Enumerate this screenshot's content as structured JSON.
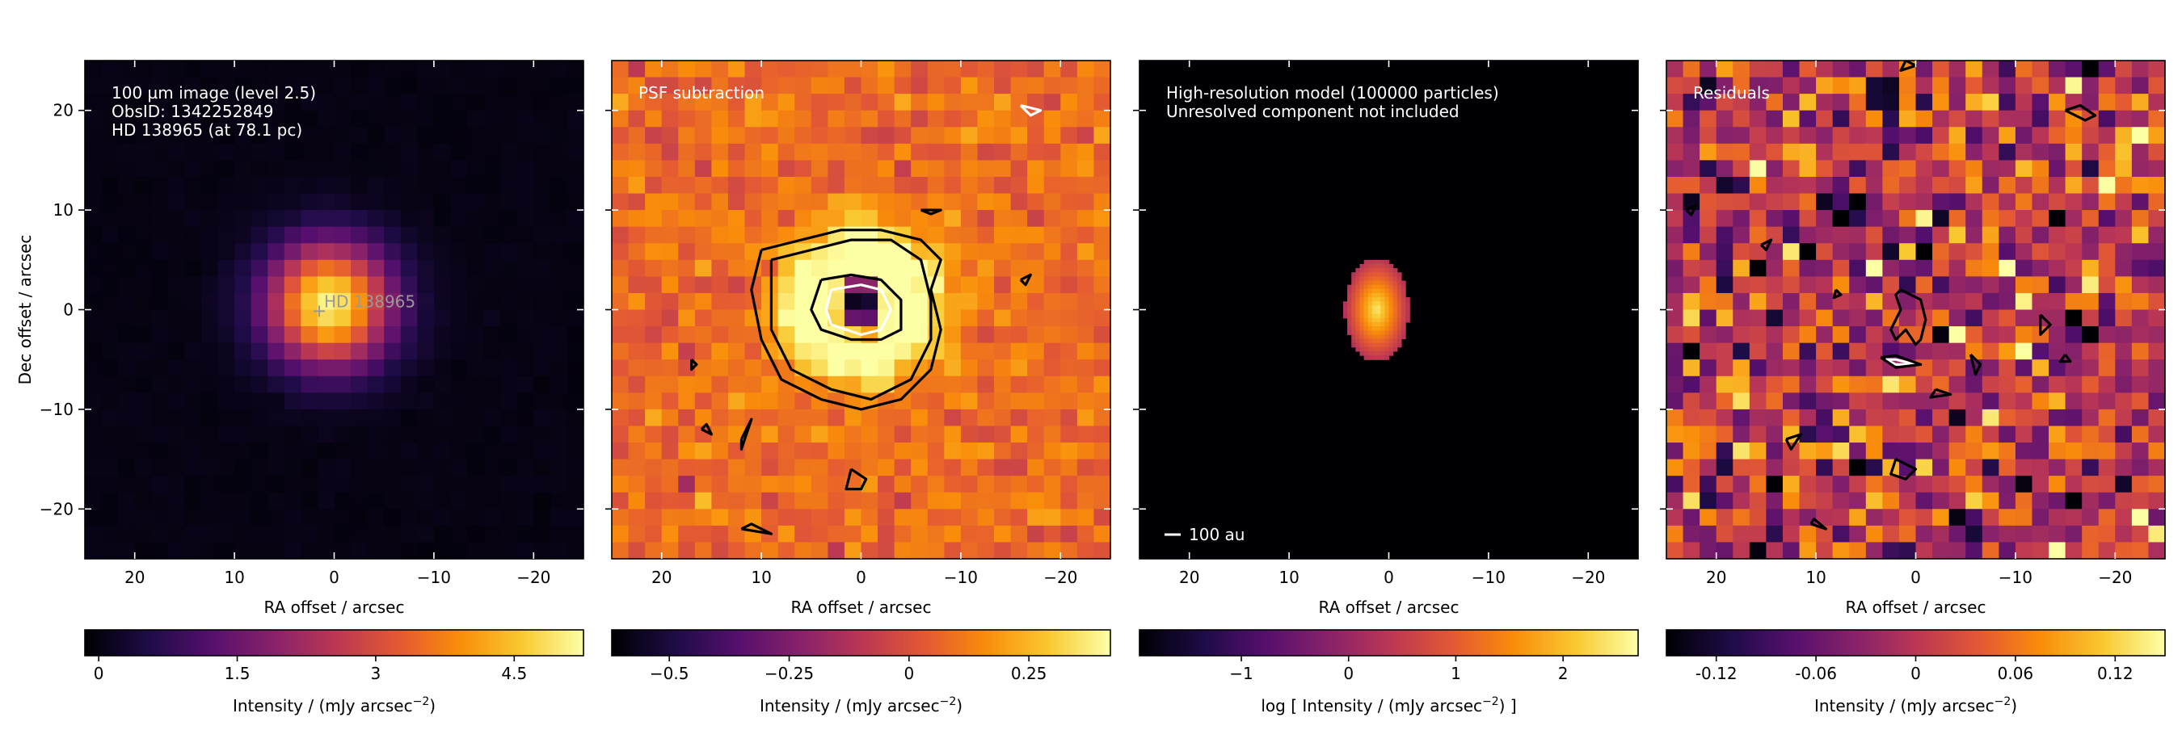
{
  "chart_data": [
    {
      "type": "heatmap",
      "title": "",
      "annotation": [
        "100 µm image (level 2.5)",
        "ObsID: 1342252849",
        "HD 138965 (at 78.1 pc)"
      ],
      "marker_label": "HD 138965",
      "marker_position": [
        1.5,
        0.5
      ],
      "xlabel": "RA offset / arcsec",
      "ylabel": "Dec offset / arcsec",
      "xlim": [
        25,
        -25
      ],
      "ylim": [
        -25,
        25
      ],
      "xticks": [
        20,
        10,
        0,
        -10,
        -20
      ],
      "xtick_labels": [
        "20",
        "10",
        "0",
        "−10",
        "−20"
      ],
      "yticks": [
        20,
        10,
        0,
        -10,
        -20
      ],
      "ytick_labels": [
        "20",
        "10",
        "0",
        "−10",
        "−20"
      ],
      "image_model": "gaussian",
      "peak": 5.1,
      "center": [
        0.5,
        0.5
      ],
      "sigma": 4.3,
      "colorbar": {
        "label": "Intensity / (mJy arcsec",
        "label_sup": "−2",
        "label_tail": ")",
        "range": [
          -0.15,
          5.25
        ],
        "ticks": [
          0,
          1.5,
          3,
          4.5
        ],
        "tick_labels": [
          "0",
          "1.5",
          "3",
          "4.5"
        ]
      },
      "contours": []
    },
    {
      "type": "heatmap",
      "title": "",
      "annotation": [
        "PSF subtraction"
      ],
      "xlabel": "RA offset / arcsec",
      "ylabel": "",
      "xlim": [
        25,
        -25
      ],
      "ylim": [
        -25,
        25
      ],
      "xticks": [
        20,
        10,
        0,
        -10,
        -20
      ],
      "xtick_labels": [
        "20",
        "10",
        "0",
        "−10",
        "−20"
      ],
      "yticks": [
        20,
        10,
        0,
        -10,
        -20
      ],
      "ytick_labels": [],
      "image_model": "ring",
      "ring_radius": 5.2,
      "ring_width": 2.6,
      "ring_peak": 0.42,
      "center": [
        0.0,
        0.5
      ],
      "hole_depth": -0.72,
      "background": 0.08,
      "noise": 0.06,
      "colorbar": {
        "label": "Intensity / (mJy arcsec",
        "label_sup": "−2",
        "label_tail": ")",
        "range": [
          -0.62,
          0.42
        ],
        "ticks": [
          -0.5,
          -0.25,
          0,
          0.25
        ],
        "tick_labels": [
          "−0.5",
          "−0.25",
          "0",
          "0.25"
        ]
      },
      "contours": [
        {
          "color": "#000000",
          "points": [
            [
              10,
              6
            ],
            [
              6,
              7
            ],
            [
              2,
              8
            ],
            [
              -2,
              8
            ],
            [
              -6,
              7
            ],
            [
              -8,
              5
            ],
            [
              -7,
              2
            ],
            [
              -8,
              -2
            ],
            [
              -7,
              -6
            ],
            [
              -4,
              -9
            ],
            [
              0,
              -10
            ],
            [
              4,
              -9
            ],
            [
              8,
              -7
            ],
            [
              10,
              -3
            ],
            [
              11,
              2
            ],
            [
              10,
              6
            ]
          ]
        },
        {
          "color": "#000000",
          "points": [
            [
              9,
              5
            ],
            [
              5,
              6
            ],
            [
              1,
              7
            ],
            [
              -3,
              7
            ],
            [
              -6,
              5
            ],
            [
              -7,
              1
            ],
            [
              -7,
              -3
            ],
            [
              -5,
              -7
            ],
            [
              -1,
              -9
            ],
            [
              3,
              -8
            ],
            [
              7,
              -6
            ],
            [
              9,
              -2
            ],
            [
              9,
              2
            ],
            [
              9,
              5
            ]
          ]
        },
        {
          "color": "#000000",
          "points": [
            [
              4,
              3
            ],
            [
              1,
              3.5
            ],
            [
              -2,
              3
            ],
            [
              -4,
              1
            ],
            [
              -4,
              -2
            ],
            [
              -2,
              -3
            ],
            [
              1,
              -3
            ],
            [
              4,
              -2
            ],
            [
              5,
              0
            ],
            [
              4,
              3
            ]
          ]
        },
        {
          "color": "#ffffff",
          "points": [
            [
              3,
              2
            ],
            [
              0,
              2.5
            ],
            [
              -2,
              2
            ],
            [
              -3,
              0
            ],
            [
              -2,
              -2
            ],
            [
              0,
              -2.5
            ],
            [
              3,
              -1.5
            ],
            [
              3.5,
              0
            ],
            [
              3,
              2
            ]
          ]
        },
        {
          "color": "#000000",
          "points": [
            [
              -6,
              10
            ],
            [
              -8,
              10
            ],
            [
              -7,
              9.6
            ],
            [
              -6,
              10
            ]
          ]
        },
        {
          "color": "#ffffff",
          "points": [
            [
              -16,
              20.5
            ],
            [
              -18,
              20
            ],
            [
              -17,
              19.5
            ],
            [
              -16,
              20.5
            ]
          ]
        },
        {
          "color": "#000000",
          "points": [
            [
              -16,
              3
            ],
            [
              -17,
              3.5
            ],
            [
              -16.5,
              2.5
            ],
            [
              -16,
              3
            ]
          ]
        },
        {
          "color": "#000000",
          "points": [
            [
              1,
              -16
            ],
            [
              -0.5,
              -17
            ],
            [
              0,
              -18
            ],
            [
              1.5,
              -18
            ],
            [
              1,
              -16
            ]
          ]
        },
        {
          "color": "#000000",
          "points": [
            [
              12,
              -22
            ],
            [
              9,
              -22.5
            ],
            [
              11,
              -21.5
            ],
            [
              12,
              -22
            ]
          ]
        },
        {
          "color": "#000000",
          "points": [
            [
              12,
              -13
            ],
            [
              11,
              -11
            ],
            [
              12,
              -14
            ],
            [
              12,
              -13
            ]
          ]
        },
        {
          "color": "#000000",
          "points": [
            [
              16,
              -12
            ],
            [
              15,
              -12.5
            ],
            [
              15.5,
              -11.5
            ],
            [
              16,
              -12
            ]
          ]
        },
        {
          "color": "#000000",
          "points": [
            [
              17,
              -5
            ],
            [
              16.5,
              -5.5
            ],
            [
              17,
              -6
            ],
            [
              17,
              -5
            ]
          ]
        }
      ]
    },
    {
      "type": "heatmap",
      "title": "",
      "annotation": [
        "High-resolution model (100000 particles)",
        "Unresolved component not included"
      ],
      "scalebar_label": "100 au",
      "scalebar_length": 1.3,
      "xlabel": "RA offset / arcsec",
      "ylabel": "",
      "xlim": [
        25,
        -25
      ],
      "ylim": [
        -25,
        25
      ],
      "xticks": [
        20,
        10,
        0,
        -10,
        -20
      ],
      "xtick_labels": [
        "20",
        "10",
        "0",
        "−10",
        "−20"
      ],
      "yticks": [
        20,
        10,
        0,
        -10,
        -20
      ],
      "ytick_labels": [],
      "image_model": "ellipse",
      "center": [
        1.2,
        0.0
      ],
      "semi_axes": [
        3.2,
        5.2
      ],
      "colorbar": {
        "label": "log [ Intensity / (mJy arcsec",
        "label_sup": "−2",
        "label_tail": ") ]",
        "range": [
          -1.95,
          2.7
        ],
        "ticks": [
          -1,
          0,
          1,
          2
        ],
        "tick_labels": [
          "−1",
          "0",
          "1",
          "2"
        ]
      },
      "contours": []
    },
    {
      "type": "heatmap",
      "title": "",
      "annotation": [
        "Residuals"
      ],
      "xlabel": "RA offset / arcsec",
      "ylabel": "",
      "xlim": [
        25,
        -25
      ],
      "ylim": [
        -25,
        25
      ],
      "xticks": [
        20,
        10,
        0,
        -10,
        -20
      ],
      "xtick_labels": [
        "20",
        "10",
        "0",
        "−10",
        "−20"
      ],
      "yticks": [
        20,
        10,
        0,
        -10,
        -20
      ],
      "ytick_labels": [],
      "image_model": "noise",
      "noise": 0.06,
      "colorbar": {
        "label": "Intensity / (mJy arcsec",
        "label_sup": "−2",
        "label_tail": ")",
        "range": [
          -0.15,
          0.15
        ],
        "ticks": [
          -0.12,
          -0.06,
          0,
          0.06,
          0.12
        ],
        "tick_labels": [
          "-0.12",
          "-0.06",
          "0",
          "0.06",
          "0.12"
        ]
      },
      "contours": [
        {
          "color": "#000000",
          "points": [
            [
              1.5,
              2
            ],
            [
              -0.5,
              1
            ],
            [
              -1,
              -1
            ],
            [
              -0.5,
              -3
            ],
            [
              0,
              -3.5
            ],
            [
              1,
              -2
            ],
            [
              2,
              -3
            ],
            [
              2.5,
              -2
            ],
            [
              1.5,
              0
            ],
            [
              2,
              1.5
            ],
            [
              1.5,
              2
            ]
          ]
        },
        {
          "color": "#ffffff",
          "points": [
            [
              3,
              -5
            ],
            [
              2,
              -5.5
            ],
            [
              0,
              -5.5
            ],
            [
              2,
              -5
            ],
            [
              3,
              -5
            ]
          ]
        },
        {
          "color": "#000000",
          "points": [
            [
              3.5,
              -4.8
            ],
            [
              2,
              -5.8
            ],
            [
              -0.5,
              -5.5
            ],
            [
              2,
              -4.6
            ],
            [
              3.5,
              -4.8
            ]
          ]
        },
        {
          "color": "#000000",
          "points": [
            [
              -15,
              20
            ],
            [
              -17,
              19
            ],
            [
              -18,
              19.5
            ],
            [
              -16.5,
              20.5
            ],
            [
              -15,
              20
            ]
          ]
        },
        {
          "color": "#000000",
          "points": [
            [
              -12.5,
              -0.5
            ],
            [
              -13.5,
              -1.5
            ],
            [
              -12.5,
              -2.5
            ],
            [
              -12.5,
              -0.5
            ]
          ]
        },
        {
          "color": "#000000",
          "points": [
            [
              -15,
              -4.5
            ],
            [
              -15.5,
              -5.2
            ],
            [
              -14.5,
              -5.2
            ],
            [
              -15,
              -4.5
            ]
          ]
        },
        {
          "color": "#000000",
          "points": [
            [
              -5.5,
              -4.5
            ],
            [
              -6.5,
              -5.5
            ],
            [
              -6,
              -6.5
            ],
            [
              -5.5,
              -4.5
            ]
          ]
        },
        {
          "color": "#000000",
          "points": [
            [
              -2,
              -8
            ],
            [
              -3.5,
              -8.5
            ],
            [
              -1.5,
              -8.8
            ],
            [
              -2,
              -8
            ]
          ]
        },
        {
          "color": "#000000",
          "points": [
            [
              2,
              -15
            ],
            [
              0,
              -16
            ],
            [
              1,
              -17
            ],
            [
              2.5,
              -16.5
            ],
            [
              2,
              -15
            ]
          ]
        },
        {
          "color": "#000000",
          "points": [
            [
              13,
              -13
            ],
            [
              11.5,
              -12.5
            ],
            [
              12.5,
              -14
            ],
            [
              13,
              -13
            ]
          ]
        },
        {
          "color": "#000000",
          "points": [
            [
              10.5,
              -21.5
            ],
            [
              9,
              -22
            ],
            [
              10.2,
              -21
            ],
            [
              10.5,
              -21.5
            ]
          ]
        },
        {
          "color": "#000000",
          "points": [
            [
              15.5,
              6.5
            ],
            [
              14.5,
              7
            ],
            [
              15,
              6
            ],
            [
              15.5,
              6.5
            ]
          ]
        },
        {
          "color": "#000000",
          "points": [
            [
              23,
              10
            ],
            [
              22,
              10.5
            ],
            [
              22.5,
              9.5
            ],
            [
              23,
              10
            ]
          ]
        },
        {
          "color": "#000000",
          "points": [
            [
              8,
              2
            ],
            [
              7.5,
              1.5
            ],
            [
              8.2,
              1.2
            ],
            [
              8,
              2
            ]
          ]
        },
        {
          "color": "#000000",
          "points": [
            [
              1,
              25
            ],
            [
              0,
              24.5
            ],
            [
              1.5,
              24
            ],
            [
              1,
              25
            ]
          ]
        }
      ]
    }
  ]
}
